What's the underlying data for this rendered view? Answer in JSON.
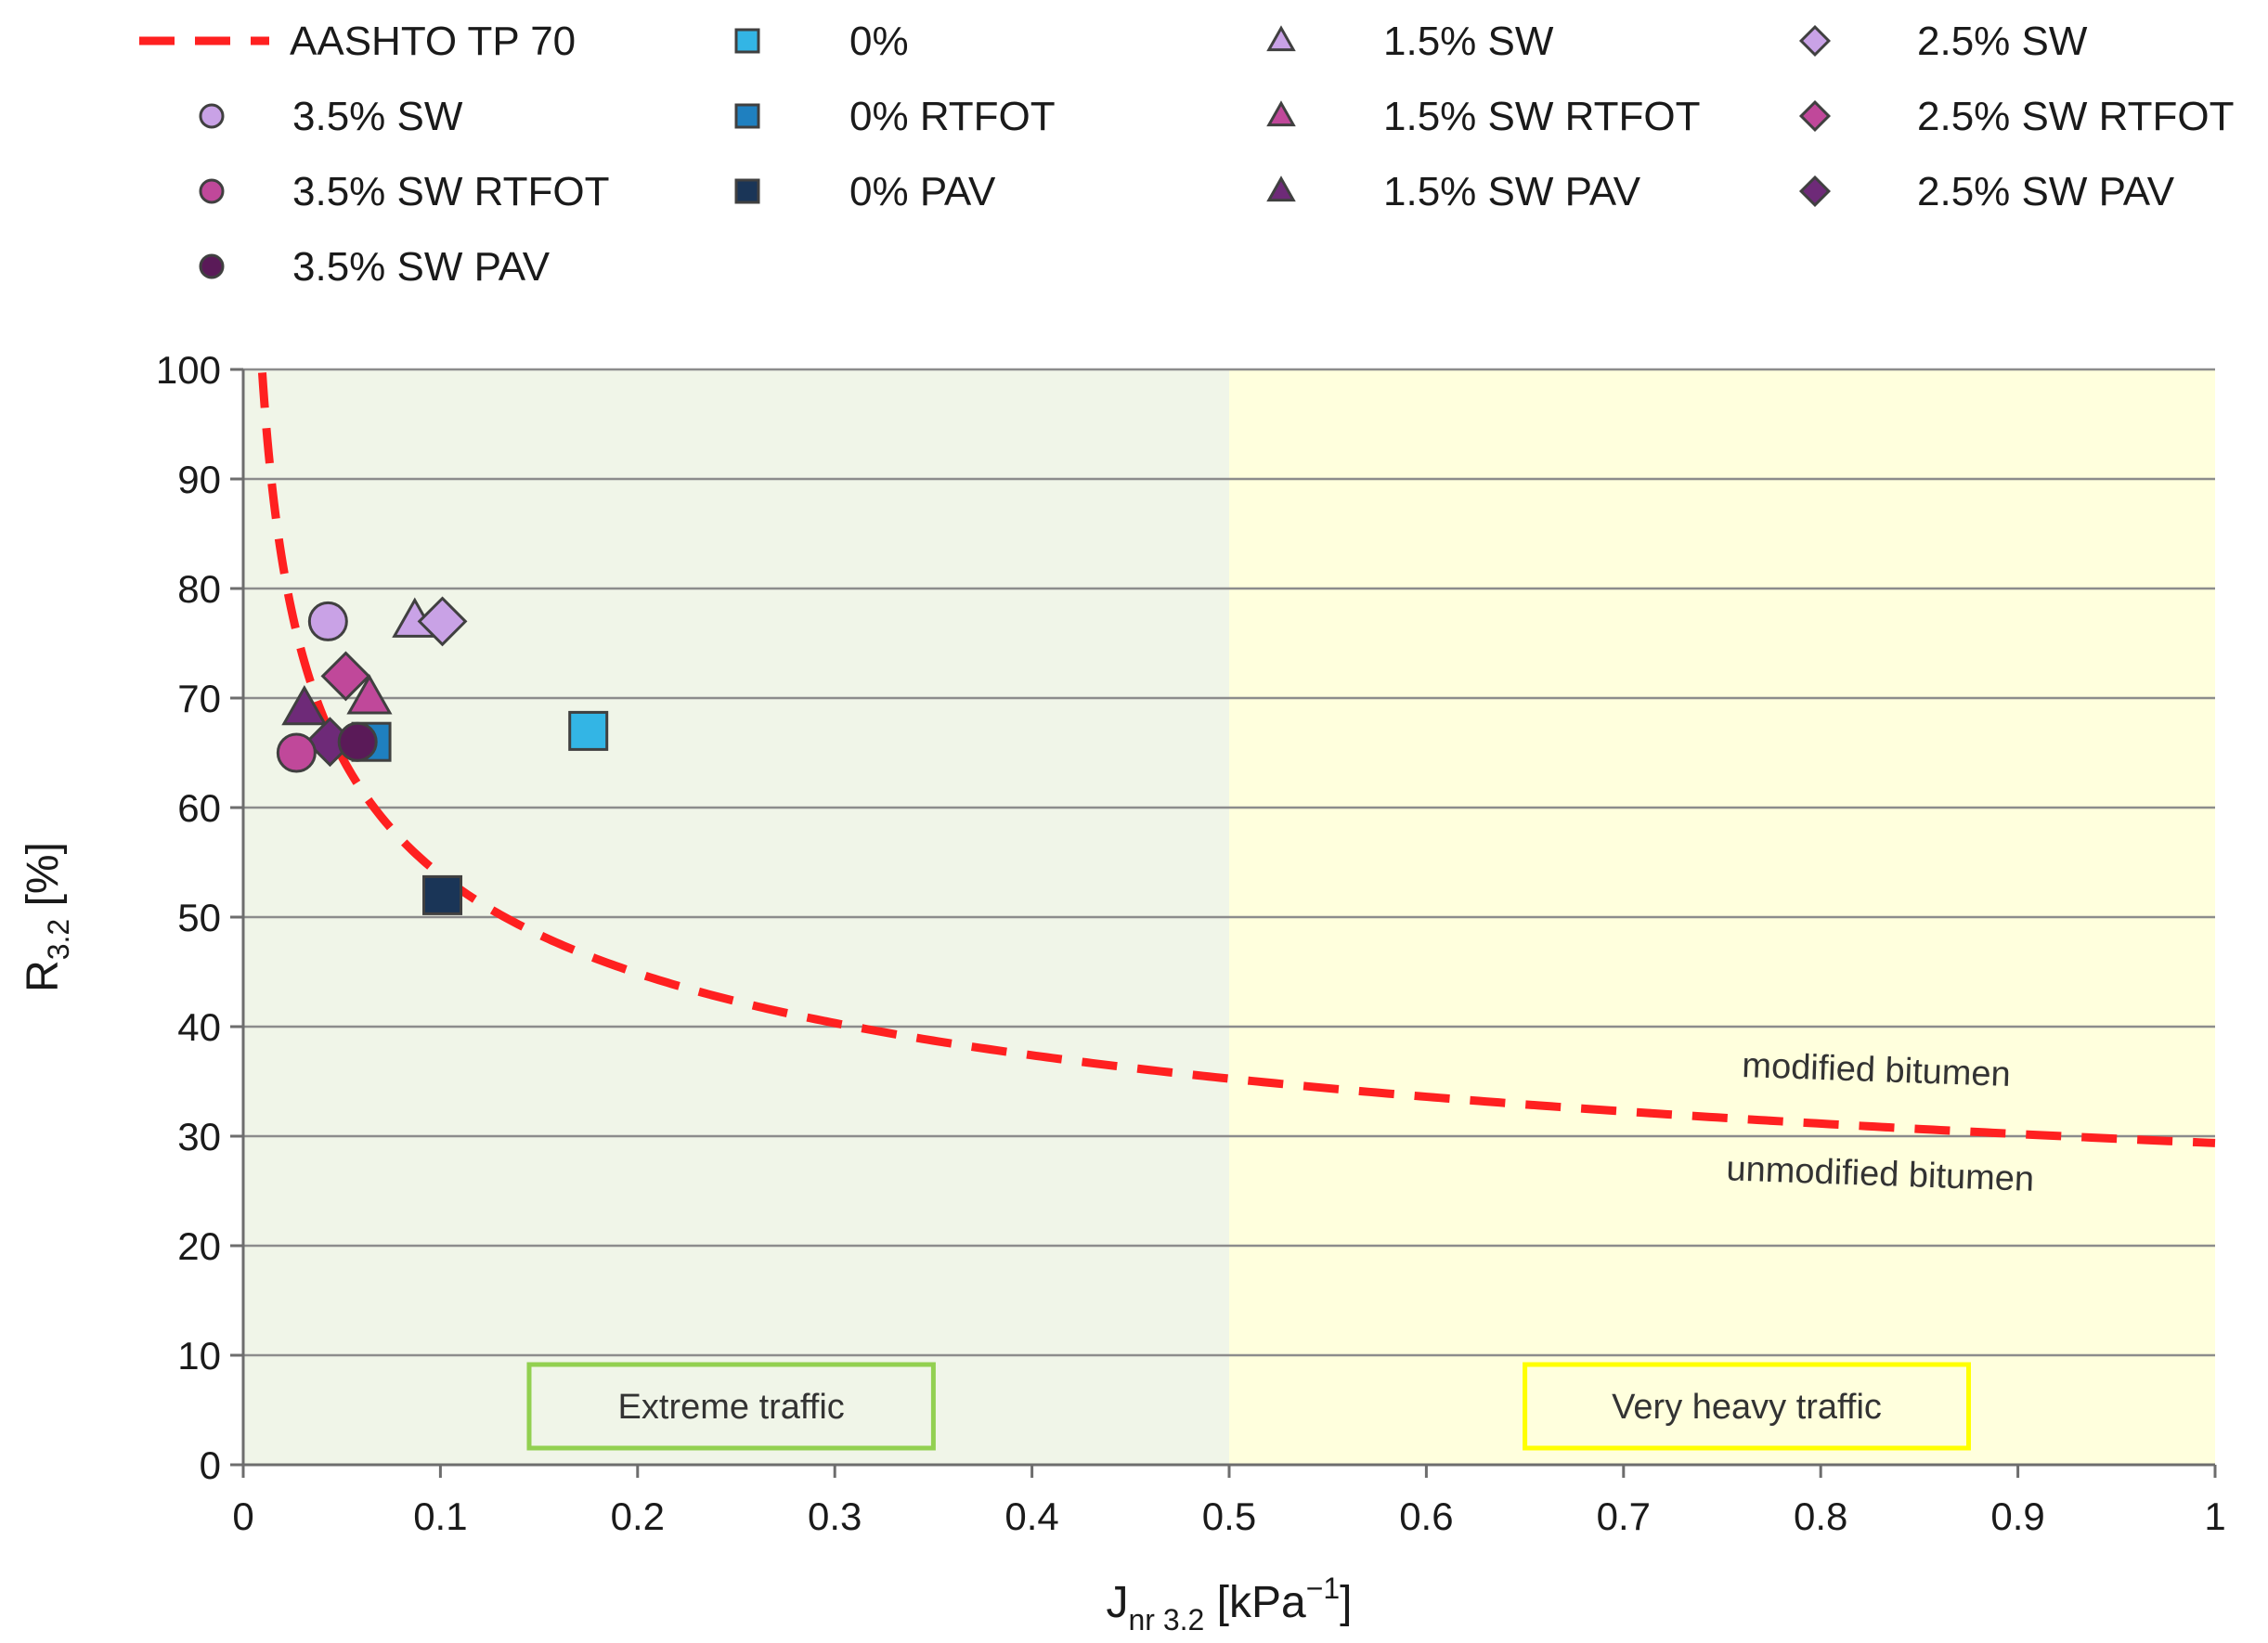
{
  "chart_data": {
    "type": "scatter",
    "xlabel": {
      "main": "J",
      "sub": "nr 3.2",
      "unit_pre": " [kPa",
      "sup": "−1",
      "unit_post": "]"
    },
    "ylabel": {
      "main": "R",
      "sub": "3.2",
      "unit": " [%]"
    },
    "xlim": [
      0,
      1
    ],
    "ylim": [
      0,
      100
    ],
    "grid": "horizontal",
    "x_ticks": [
      {
        "value": 0,
        "label": "0"
      },
      {
        "value": 0.1,
        "label": "0.1"
      },
      {
        "value": 0.2,
        "label": "0.2"
      },
      {
        "value": 0.3,
        "label": "0.3"
      },
      {
        "value": 0.4,
        "label": "0.4"
      },
      {
        "value": 0.5,
        "label": "0.5"
      },
      {
        "value": 0.6,
        "label": "0.6"
      },
      {
        "value": 0.7,
        "label": "0.7"
      },
      {
        "value": 0.8,
        "label": "0.8"
      },
      {
        "value": 0.9,
        "label": "0.9"
      },
      {
        "value": 1,
        "label": "1"
      }
    ],
    "y_ticks": [
      {
        "value": 0,
        "label": "0"
      },
      {
        "value": 10,
        "label": "10"
      },
      {
        "value": 20,
        "label": "20"
      },
      {
        "value": 30,
        "label": "30"
      },
      {
        "value": 40,
        "label": "40"
      },
      {
        "value": 50,
        "label": "50"
      },
      {
        "value": 60,
        "label": "60"
      },
      {
        "value": 70,
        "label": "70"
      },
      {
        "value": 80,
        "label": "80"
      },
      {
        "value": 90,
        "label": "90"
      },
      {
        "value": 100,
        "label": "100"
      }
    ],
    "regions": [
      {
        "name": "extreme-traffic",
        "x0": 0,
        "x1": 0.5,
        "color": "#f0f5e8",
        "box_label": "Extreme  traffic",
        "box_color": "#92d050",
        "label_x": [
          0.145,
          0.35
        ]
      },
      {
        "name": "very-heavy-traffic",
        "x0": 0.5,
        "x1": 1.0,
        "color": "#ffffdd",
        "box_label": "Very heavy traffic",
        "box_color": "#ffff00",
        "label_x": [
          0.65,
          0.875
        ]
      }
    ],
    "curve": {
      "name": "AASHTO TP 70",
      "color": "#ff2020",
      "formula": "29.371 * x^(-0.2633)",
      "x_min": 0.006,
      "x_max": 1.0
    },
    "curve_annotations": [
      {
        "text": "modified bitumen",
        "x": 0.828,
        "y": 35,
        "rotate": 2
      },
      {
        "text": "unmodified bitumen",
        "x": 0.83,
        "y": 25.5,
        "rotate": 2
      }
    ],
    "series": [
      {
        "name": "0%",
        "marker": "square",
        "color": "#33b5e5",
        "points": [
          [
            0.175,
            67
          ]
        ]
      },
      {
        "name": "0% RTFOT",
        "marker": "square",
        "color": "#1f80c0",
        "points": [
          [
            0.065,
            66
          ]
        ]
      },
      {
        "name": "0% PAV",
        "marker": "square",
        "color": "#1a3557",
        "points": [
          [
            0.101,
            52
          ]
        ]
      },
      {
        "name": "1.5% SW",
        "marker": "triangle",
        "color": "#c9a2e6",
        "points": [
          [
            0.087,
            77
          ]
        ]
      },
      {
        "name": "1.5% SW RTFOT",
        "marker": "triangle",
        "color": "#c0489a",
        "points": [
          [
            0.064,
            70
          ]
        ]
      },
      {
        "name": "1.5% SW PAV",
        "marker": "triangle",
        "color": "#6e2a78",
        "points": [
          [
            0.031,
            69
          ]
        ]
      },
      {
        "name": "2.5% SW",
        "marker": "diamond",
        "color": "#c9a2e6",
        "points": [
          [
            0.101,
            77
          ]
        ]
      },
      {
        "name": "2.5% SW RTFOT",
        "marker": "diamond",
        "color": "#c0489a",
        "points": [
          [
            0.052,
            72
          ]
        ]
      },
      {
        "name": "2.5% SW PAV",
        "marker": "diamond",
        "color": "#6e2a78",
        "points": [
          [
            0.044,
            66
          ]
        ]
      },
      {
        "name": "3.5% SW",
        "marker": "circle",
        "color": "#c9a2e6",
        "points": [
          [
            0.043,
            77
          ]
        ]
      },
      {
        "name": "3.5% SW RTFOT",
        "marker": "circle",
        "color": "#c0489a",
        "points": [
          [
            0.027,
            65
          ]
        ]
      },
      {
        "name": "3.5% SW PAV",
        "marker": "circle",
        "color": "#5a1a58",
        "points": [
          [
            0.058,
            66
          ]
        ]
      }
    ],
    "legend": {
      "placement": "top",
      "columns": [
        [
          "AASHTO TP 70",
          "3.5% SW",
          "3.5% SW RTFOT",
          "3.5% SW PAV"
        ],
        [
          "0%",
          "0% RTFOT",
          "0% PAV"
        ],
        [
          "1.5% SW",
          "1.5% SW RTFOT",
          "1.5% SW PAV"
        ],
        [
          "2.5% SW",
          "2.5% SW RTFOT",
          "2.5% SW PAV"
        ]
      ]
    }
  }
}
